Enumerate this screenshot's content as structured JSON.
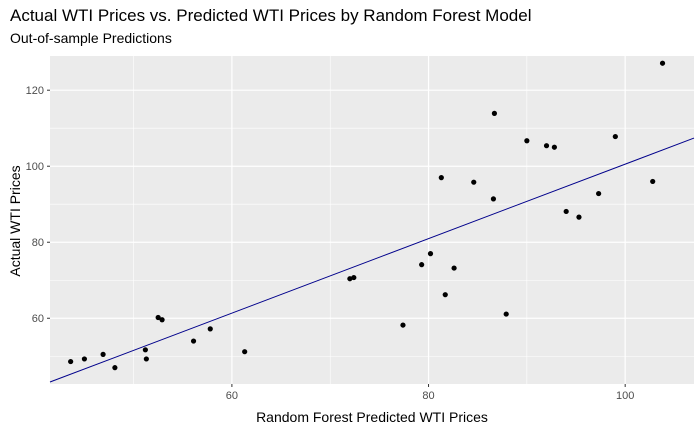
{
  "chart_data": {
    "type": "scatter",
    "title": "Actual WTI Prices vs. Predicted WTI Prices by Random Forest Model",
    "subtitle": "Out-of-sample Predictions",
    "xlabel": "Random Forest Predicted WTI Prices",
    "ylabel": "Actual WTI Prices",
    "xlim": [
      41.5,
      107
    ],
    "ylim": [
      42.7,
      129
    ],
    "x_ticks": [
      60,
      80,
      100
    ],
    "y_ticks": [
      60,
      80,
      100,
      120
    ],
    "grid": true,
    "background_color": "#ebebeb",
    "point_color": "#000000",
    "line_color": "#00008b",
    "fit_line": {
      "slope": 0.98,
      "intercept": 2.55
    },
    "points": [
      {
        "x": 43.6,
        "y": 48.6
      },
      {
        "x": 45.0,
        "y": 49.3
      },
      {
        "x": 46.9,
        "y": 50.5
      },
      {
        "x": 48.1,
        "y": 47.0
      },
      {
        "x": 51.2,
        "y": 51.7
      },
      {
        "x": 51.3,
        "y": 49.3
      },
      {
        "x": 52.5,
        "y": 60.2
      },
      {
        "x": 52.9,
        "y": 59.6
      },
      {
        "x": 56.1,
        "y": 54.0
      },
      {
        "x": 57.8,
        "y": 57.2
      },
      {
        "x": 61.3,
        "y": 51.2
      },
      {
        "x": 72.0,
        "y": 70.4
      },
      {
        "x": 72.4,
        "y": 70.7
      },
      {
        "x": 77.4,
        "y": 58.2
      },
      {
        "x": 79.3,
        "y": 74.1
      },
      {
        "x": 80.2,
        "y": 77.0
      },
      {
        "x": 81.3,
        "y": 97.0
      },
      {
        "x": 81.7,
        "y": 66.2
      },
      {
        "x": 82.6,
        "y": 73.2
      },
      {
        "x": 84.6,
        "y": 95.8
      },
      {
        "x": 86.6,
        "y": 91.4
      },
      {
        "x": 86.7,
        "y": 113.9
      },
      {
        "x": 87.9,
        "y": 61.1
      },
      {
        "x": 90.0,
        "y": 106.7
      },
      {
        "x": 92.0,
        "y": 105.4
      },
      {
        "x": 92.8,
        "y": 105.0
      },
      {
        "x": 94.0,
        "y": 88.1
      },
      {
        "x": 95.3,
        "y": 86.6
      },
      {
        "x": 97.3,
        "y": 92.8
      },
      {
        "x": 99.0,
        "y": 107.8
      },
      {
        "x": 102.8,
        "y": 96.0
      },
      {
        "x": 103.8,
        "y": 127.1
      }
    ]
  }
}
